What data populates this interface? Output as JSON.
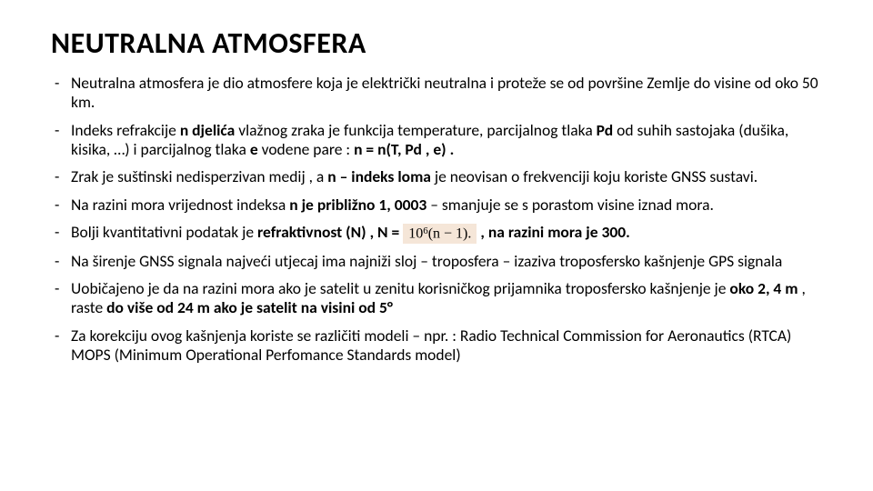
{
  "title": "NEUTRALNA ATMOSFERA",
  "bullets": [
    {
      "pre": "Neutralna atmosfera je dio atmosfere koja je električki neutralna i proteže se od površine Zemlje do visine od oko 50 km."
    },
    {
      "pre": "Indeks refrakcije ",
      "b1": "n djelića",
      "mid1": " vlažnog zraka je funkcija temperature, parcijalnog tlaka ",
      "b2": "Pd",
      "mid2": " od suhih sastojaka (dušika, kisika, …) i parcijalnog tlaka ",
      "b3": "e",
      "mid3": " vodene pare : ",
      "b4": "n = n(T, Pd , e) ."
    },
    {
      "pre": "Zrak je suštinski nedisperzivan medij , a ",
      "b1": "n – indeks loma",
      "mid1": " je neovisan o frekvenciji koju koriste GNSS sustavi."
    },
    {
      "pre": "Na razini mora vrijednost indeksa ",
      "b1": "n je približno 1, 0003",
      "mid1": " – smanjuje se s porastom visine iznad mora."
    },
    {
      "pre": "Bolji kvantitativni podatak je ",
      "b1": "refraktivnost (N) ,  N = ",
      "formula_base": "10",
      "formula_sup": "6",
      "formula_tail": "(n − 1).",
      "mid1": " , ",
      "b2": "na razini mora je 300."
    },
    {
      "pre": "Na širenje GNSS signala najveći utjecaj ima najniži sloj – troposfera – izaziva troposfersko kašnjenje GPS signala"
    },
    {
      "pre": "Uobičajeno je da na razini mora ako je satelit u zenitu korisničkog prijamnika troposfersko kašnjenje je ",
      "b1": "oko 2, 4 m ",
      "mid1": ", raste ",
      "b2": "do više od 24 m ako je satelit na visini od 5°"
    },
    {
      "pre": "Za korekciju ovog kašnjenja koriste se različiti modeli – npr. : Radio Technical Commission for Aeronautics (RTCA) MOPS (Minimum Operational Perfomance Standards model)"
    }
  ]
}
